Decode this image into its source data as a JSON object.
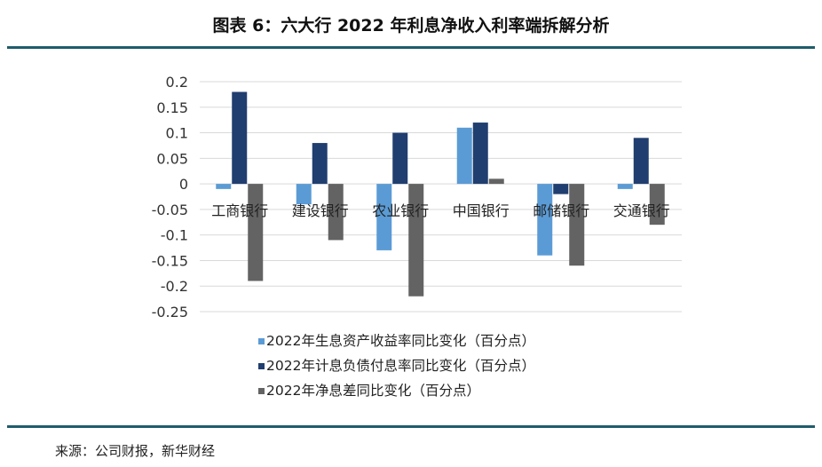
{
  "header": {
    "title": "图表 6：六大行 2022 年利息净收入利率端拆解分析"
  },
  "footer": {
    "source": "来源：公司财报，新华财经"
  },
  "chart_data": {
    "type": "bar",
    "title": "图表 6：六大行 2022 年利息净收入利率端拆解分析",
    "xlabel": "",
    "ylabel": "",
    "categories": [
      "工商银行",
      "建设银行",
      "农业银行",
      "中国银行",
      "邮储银行",
      "交通银行"
    ],
    "series": [
      {
        "name": "2022年生息资产收益率同比变化（百分点）",
        "color": "#5b9bd5",
        "values": [
          -0.01,
          -0.04,
          -0.13,
          0.11,
          -0.14,
          -0.01
        ]
      },
      {
        "name": "2022年计息负债付息率同比变化（百分点）",
        "color": "#203e6f",
        "values": [
          0.18,
          0.08,
          0.1,
          0.12,
          -0.02,
          0.09
        ]
      },
      {
        "name": "2022年净息差同比变化（百分点）",
        "color": "#636363",
        "values": [
          -0.19,
          -0.11,
          -0.22,
          0.01,
          -0.16,
          -0.08
        ]
      }
    ],
    "ylim": [
      -0.25,
      0.2
    ],
    "yticks": [
      0.2,
      0.15,
      0.1,
      0.05,
      0,
      -0.05,
      -0.1,
      -0.15,
      -0.2,
      -0.25
    ],
    "ytick_labels": [
      "0.2",
      "0.15",
      "0.1",
      "0.05",
      "0",
      "-0.05",
      "-0.1",
      "-0.15",
      "-0.2",
      "-0.25"
    ],
    "grid": true,
    "legend": "bottom"
  }
}
